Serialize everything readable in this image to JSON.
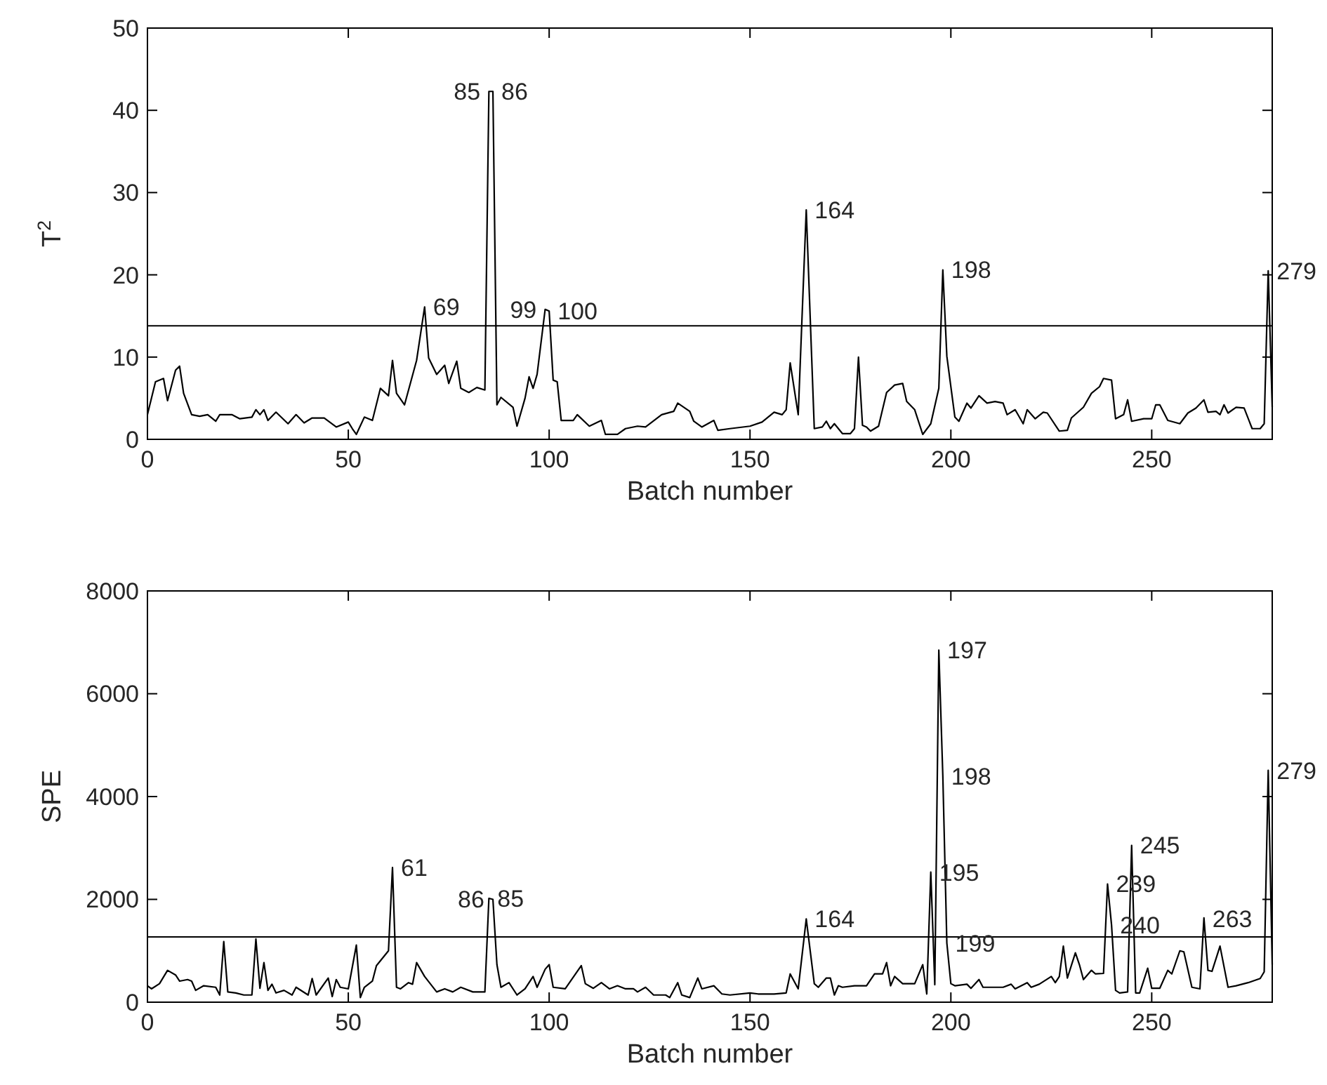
{
  "chart_data": [
    {
      "type": "line",
      "ylabel": "T$^{2}$",
      "xlabel": "Batch number",
      "color": "#000000",
      "xlim": [
        0,
        280
      ],
      "ylim": [
        0,
        50
      ],
      "xticks": [
        0,
        50,
        100,
        150,
        200,
        250
      ],
      "yticks": [
        0,
        10,
        20,
        30,
        40,
        50
      ],
      "grid": false,
      "marker": "none",
      "line_style": "solid",
      "x": [
        0,
        2,
        4,
        5,
        7,
        8,
        9,
        11,
        13,
        15,
        17,
        18,
        21,
        23,
        26,
        27,
        28,
        29,
        30,
        32,
        35,
        37,
        39,
        41,
        44,
        47,
        50,
        51,
        52,
        54,
        56,
        58,
        60,
        61,
        62,
        64,
        67,
        69,
        70,
        72,
        74,
        75,
        77,
        78,
        80,
        82,
        84,
        85,
        86,
        87,
        88,
        91,
        92,
        94,
        95,
        96,
        97,
        99,
        100,
        101,
        102,
        103,
        106,
        107,
        110,
        113,
        114,
        117,
        119,
        122,
        124,
        128,
        131,
        132,
        135,
        136,
        138,
        141,
        142,
        145,
        150,
        153,
        156,
        158,
        159,
        160,
        162,
        164,
        166,
        168,
        169,
        170,
        171,
        173,
        175,
        176,
        177,
        178,
        179,
        180,
        182,
        184,
        186,
        188,
        189,
        191,
        193,
        195,
        197,
        198,
        199,
        201,
        202,
        204,
        205,
        207,
        209,
        211,
        213,
        214,
        216,
        218,
        219,
        221,
        223,
        224,
        227,
        229,
        230,
        233,
        235,
        237,
        238,
        240,
        241,
        243,
        244,
        245,
        248,
        250,
        251,
        252,
        254,
        257,
        259,
        261,
        263,
        264,
        266,
        267,
        268,
        269,
        271,
        273,
        275,
        277,
        278,
        279,
        280
      ],
      "values": [
        3.0,
        7.0,
        7.4,
        4.7,
        8.4,
        8.9,
        5.6,
        3.0,
        2.8,
        3.0,
        2.2,
        3.0,
        3.0,
        2.5,
        2.7,
        3.6,
        3.0,
        3.6,
        2.3,
        3.3,
        1.9,
        3.0,
        2.0,
        2.6,
        2.6,
        1.5,
        2.1,
        1.3,
        0.6,
        2.7,
        2.3,
        6.2,
        5.3,
        9.6,
        5.6,
        4.2,
        9.6,
        16.1,
        9.9,
        7.9,
        9.0,
        6.8,
        9.5,
        6.2,
        5.7,
        6.3,
        6.0,
        42.3,
        42.3,
        4.2,
        5.1,
        3.9,
        1.6,
        5.0,
        7.6,
        6.2,
        7.9,
        15.8,
        15.6,
        7.2,
        7.0,
        2.3,
        2.3,
        3.0,
        1.6,
        2.3,
        0.6,
        0.6,
        1.3,
        1.6,
        1.5,
        3.0,
        3.4,
        4.4,
        3.4,
        2.2,
        1.5,
        2.3,
        1.1,
        1.3,
        1.6,
        2.1,
        3.3,
        3.0,
        3.6,
        9.3,
        3.0,
        27.9,
        1.3,
        1.5,
        2.2,
        1.3,
        1.9,
        0.7,
        0.7,
        1.3,
        10.0,
        1.7,
        1.5,
        1.0,
        1.6,
        5.7,
        6.6,
        6.8,
        4.6,
        3.6,
        0.6,
        1.9,
        6.2,
        20.6,
        10.1,
        2.7,
        2.2,
        4.4,
        3.8,
        5.3,
        4.4,
        4.6,
        4.4,
        3.0,
        3.6,
        1.9,
        3.6,
        2.5,
        3.3,
        3.2,
        1.0,
        1.1,
        2.6,
        3.9,
        5.6,
        6.4,
        7.4,
        7.2,
        2.5,
        3.0,
        4.8,
        2.2,
        2.5,
        2.5,
        4.2,
        4.2,
        2.3,
        1.9,
        3.2,
        3.8,
        4.8,
        3.3,
        3.4,
        3.0,
        4.2,
        3.2,
        3.9,
        3.8,
        1.3,
        1.3,
        1.9,
        20.5,
        3.9
      ],
      "ref_lines": [
        {
          "axis": "y",
          "value": 13.8,
          "color": "#000000"
        }
      ],
      "annotations": [
        {
          "text": "85",
          "x": 85,
          "y": 42.3
        },
        {
          "text": "86",
          "x": 86,
          "y": 42.3
        },
        {
          "text": "69",
          "x": 69,
          "y": 16.1
        },
        {
          "text": "99",
          "x": 99,
          "y": 15.8
        },
        {
          "text": "100",
          "x": 100,
          "y": 15.6
        },
        {
          "text": "164",
          "x": 164,
          "y": 27.9
        },
        {
          "text": "198",
          "x": 198,
          "y": 20.6
        },
        {
          "text": "279",
          "x": 279,
          "y": 20.5
        }
      ]
    },
    {
      "type": "line",
      "ylabel": "SPE",
      "xlabel": "Batch number",
      "color": "#000000",
      "xlim": [
        0,
        280
      ],
      "ylim": [
        0,
        8000
      ],
      "xticks": [
        0,
        50,
        100,
        150,
        200,
        250
      ],
      "yticks": [
        0,
        2000,
        4000,
        6000,
        8000
      ],
      "grid": false,
      "marker": "none",
      "line_style": "solid",
      "x": [
        0,
        1,
        3,
        5,
        7,
        8,
        10,
        11,
        12,
        14,
        17,
        18,
        19,
        20,
        22,
        24,
        26,
        27,
        28,
        29,
        30,
        31,
        32,
        34,
        36,
        37,
        40,
        41,
        42,
        45,
        46,
        47,
        48,
        50,
        52,
        53,
        54,
        56,
        57,
        60,
        61,
        62,
        63,
        65,
        66,
        67,
        69,
        72,
        74,
        76,
        78,
        81,
        84,
        85,
        86,
        87,
        88,
        90,
        92,
        94,
        96,
        97,
        99,
        100,
        101,
        104,
        108,
        109,
        111,
        113,
        115,
        117,
        119,
        121,
        122,
        124,
        126,
        129,
        130,
        132,
        133,
        135,
        137,
        138,
        141,
        143,
        145,
        150,
        152,
        156,
        159,
        160,
        162,
        164,
        166,
        167,
        169,
        170,
        171,
        172,
        173,
        176,
        179,
        181,
        183,
        184,
        185,
        186,
        188,
        191,
        193,
        194,
        195,
        196,
        197,
        198,
        199,
        200,
        201,
        204,
        205,
        207,
        208,
        213,
        215,
        216,
        219,
        220,
        222,
        225,
        226,
        227,
        228,
        229,
        231,
        232,
        233,
        235,
        236,
        238,
        239,
        240,
        241,
        242,
        244,
        245,
        246,
        247,
        249,
        250,
        252,
        254,
        255,
        257,
        258,
        260,
        262,
        263,
        264,
        265,
        267,
        269,
        271,
        274,
        277,
        278,
        279,
        280
      ],
      "values": [
        320,
        260,
        360,
        620,
        530,
        410,
        440,
        410,
        230,
        320,
        290,
        140,
        1180,
        200,
        180,
        140,
        140,
        1230,
        270,
        770,
        230,
        350,
        180,
        230,
        140,
        290,
        140,
        460,
        140,
        470,
        110,
        440,
        290,
        260,
        1110,
        90,
        290,
        410,
        710,
        1000,
        2620,
        290,
        260,
        380,
        350,
        770,
        500,
        200,
        260,
        200,
        290,
        200,
        200,
        2020,
        2000,
        730,
        290,
        380,
        140,
        260,
        500,
        290,
        640,
        730,
        290,
        260,
        710,
        360,
        270,
        380,
        260,
        320,
        260,
        260,
        200,
        290,
        140,
        140,
        90,
        380,
        140,
        90,
        470,
        260,
        320,
        160,
        140,
        180,
        160,
        160,
        180,
        550,
        260,
        1620,
        360,
        290,
        470,
        470,
        140,
        320,
        290,
        320,
        320,
        550,
        550,
        770,
        320,
        500,
        360,
        360,
        730,
        160,
        2530,
        340,
        6850,
        4400,
        1150,
        360,
        320,
        350,
        270,
        440,
        290,
        290,
        350,
        260,
        380,
        290,
        350,
        500,
        380,
        500,
        1090,
        470,
        960,
        730,
        440,
        620,
        550,
        560,
        2300,
        1500,
        230,
        180,
        200,
        3050,
        180,
        180,
        660,
        270,
        270,
        620,
        550,
        1000,
        980,
        290,
        260,
        1640,
        620,
        600,
        1090,
        290,
        320,
        380,
        460,
        590,
        4510,
        730
      ],
      "ref_lines": [
        {
          "axis": "y",
          "value": 1270,
          "color": "#000000"
        }
      ],
      "annotations": [
        {
          "text": "61",
          "x": 61,
          "y": 2620
        },
        {
          "text": "86",
          "x": 86,
          "y": 2000
        },
        {
          "text": "85",
          "x": 85,
          "y": 2020
        },
        {
          "text": "164",
          "x": 164,
          "y": 1620
        },
        {
          "text": "197",
          "x": 197,
          "y": 6850
        },
        {
          "text": "198",
          "x": 198,
          "y": 4400
        },
        {
          "text": "195",
          "x": 195,
          "y": 2530
        },
        {
          "text": "199",
          "x": 199,
          "y": 1150
        },
        {
          "text": "239",
          "x": 239,
          "y": 2300
        },
        {
          "text": "240",
          "x": 240,
          "y": 1500
        },
        {
          "text": "245",
          "x": 245,
          "y": 3050
        },
        {
          "text": "263",
          "x": 263,
          "y": 1620
        },
        {
          "text": "279",
          "x": 279,
          "y": 4510
        }
      ]
    }
  ]
}
